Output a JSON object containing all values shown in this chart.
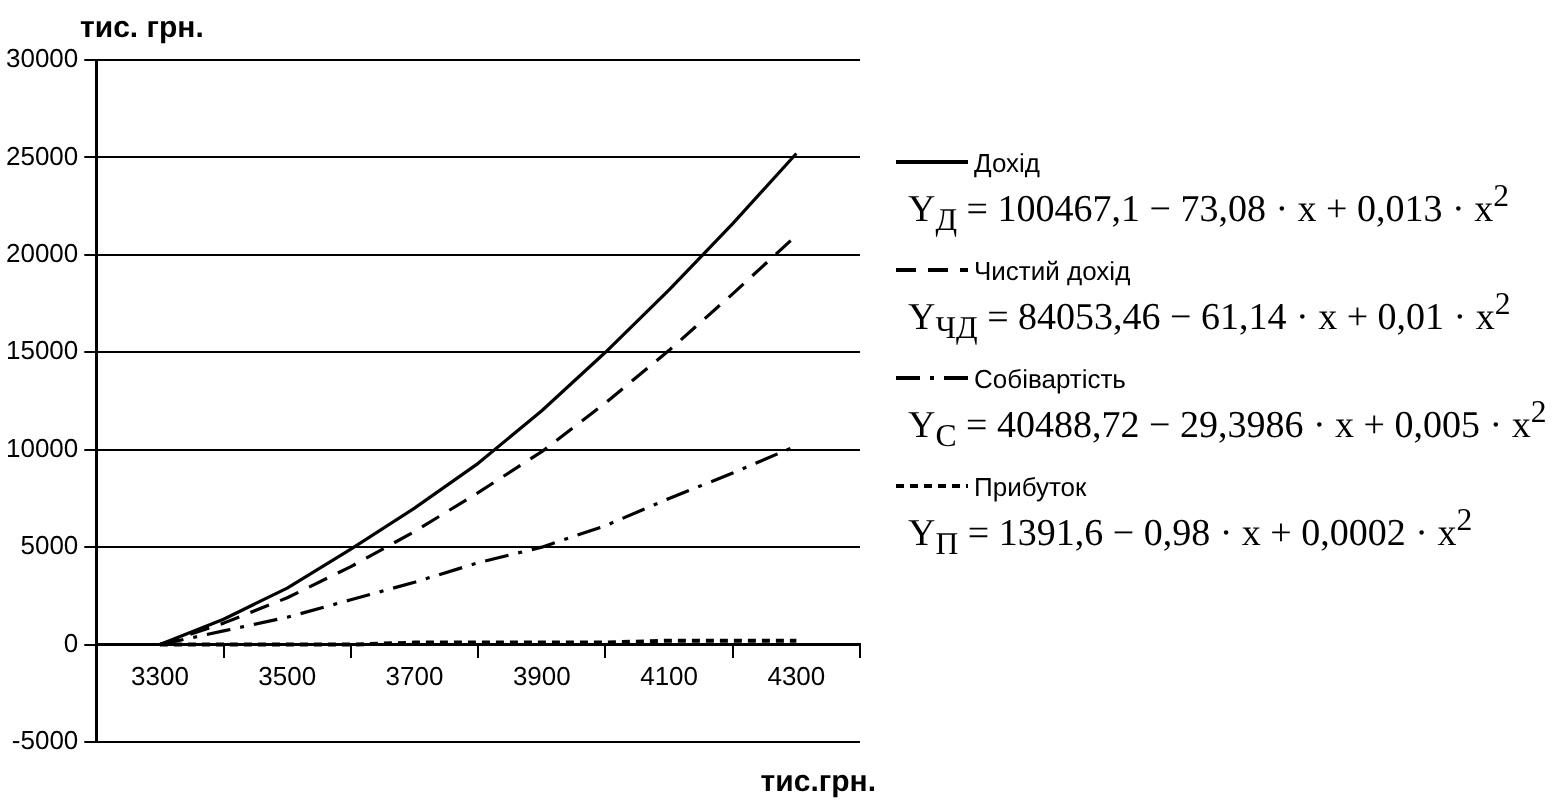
{
  "chart_data": {
    "type": "line",
    "ylabel": "тис. грн.",
    "xlabel": "тис.грн.",
    "x": [
      3300,
      3400,
      3500,
      3600,
      3700,
      3800,
      3900,
      4000,
      4100,
      4200,
      4300
    ],
    "xlim": [
      3200,
      4400
    ],
    "xticks": [
      {
        "value": 3200,
        "label": null
      },
      3300,
      {
        "value": 3400,
        "label": null
      },
      3500,
      {
        "value": 3600,
        "label": null
      },
      3700,
      {
        "value": 3800,
        "label": null
      },
      3900,
      {
        "value": 4000,
        "label": null
      },
      4100,
      {
        "value": 4200,
        "label": null
      },
      4300,
      {
        "value": 4400,
        "label": null
      }
    ],
    "ylim": [
      -5000,
      30000
    ],
    "yticks": [
      -5000,
      0,
      5000,
      10000,
      15000,
      20000,
      25000,
      30000
    ],
    "grid": "y",
    "legend": "right",
    "marker": "none",
    "series": [
      {
        "name": "Дохід",
        "color": "#000000",
        "line_style": "solid",
        "values": [
          0,
          1300,
          2900,
          4900,
          7000,
          9300,
          12000,
          15000,
          18200,
          21600,
          25200
        ]
      },
      {
        "name": "Чистий дохід",
        "color": "#000000",
        "line_style": "dashed",
        "values": [
          0,
          1100,
          2400,
          4000,
          5800,
          7800,
          9900,
          12400,
          15100,
          18000,
          21000
        ]
      },
      {
        "name": "Собівартість",
        "color": "#000000",
        "line_style": "dashdot",
        "values": [
          0,
          700,
          1400,
          2300,
          3200,
          4200,
          5000,
          6100,
          7500,
          8800,
          10200
        ]
      },
      {
        "name": "Прибуток",
        "color": "#000000",
        "line_style": "dotted",
        "values": [
          0,
          0,
          0,
          0,
          100,
          100,
          100,
          100,
          200,
          200,
          200
        ]
      }
    ],
    "annotations": [
      "Y$_{Д}$ = 100467,1 − 73,08 · x + 0,013 · x$^{2}$",
      "Y$_{ЧД}$ = 84053,46 − 61,14 · x  + 0,01 · x$^{2}$",
      "Y$_{С}$ = 40488,72 − 29,3986 · x + 0,005 · x$^{2}$",
      "Y$_{П}$ = 1391,6 − 0,98 · x + 0,0002 · x$^{2}$"
    ]
  }
}
